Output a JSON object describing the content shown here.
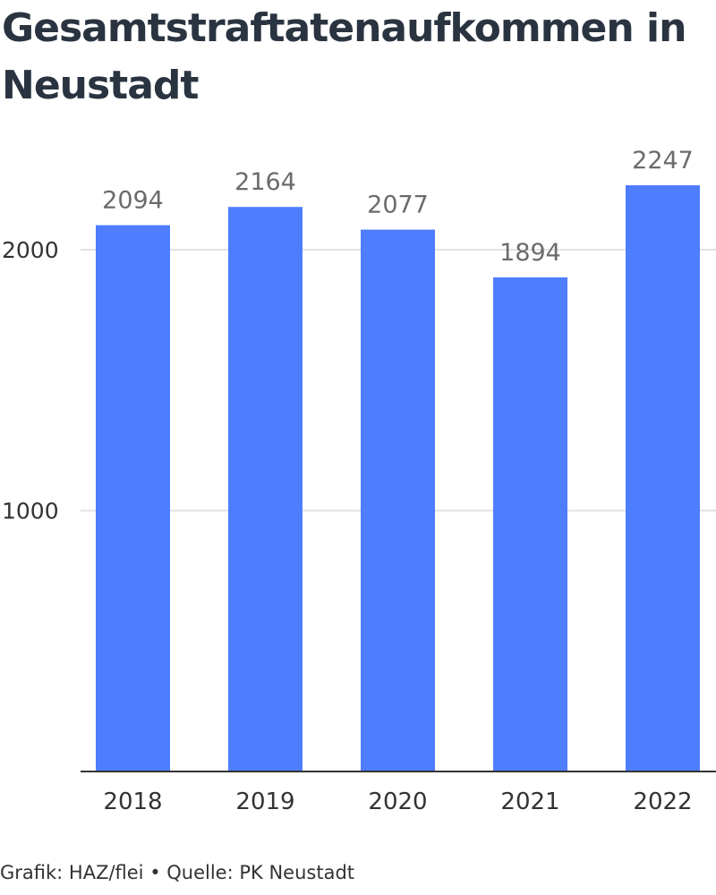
{
  "title": "Gesamtstraftatenaufkommen in Neustadt",
  "footer": "Grafik: HAZ/flei • Quelle: PK Neustadt",
  "colors": {
    "bar": "#4f7dff",
    "grid": "#e2e2e2",
    "axis": "#333333",
    "value_label": "#6b6b6b",
    "tick_label": "#333333",
    "title": "#2a3441"
  },
  "chart_data": {
    "type": "bar",
    "title": "Gesamtstraftatenaufkommen in Neustadt",
    "categories": [
      "2018",
      "2019",
      "2020",
      "2021",
      "2022"
    ],
    "values": [
      2094,
      2164,
      2077,
      1894,
      2247
    ],
    "xlabel": "",
    "ylabel": "",
    "ylim": [
      0,
      2600
    ],
    "yticks": [
      1000,
      2000
    ],
    "grid": true,
    "data_labels": true
  }
}
